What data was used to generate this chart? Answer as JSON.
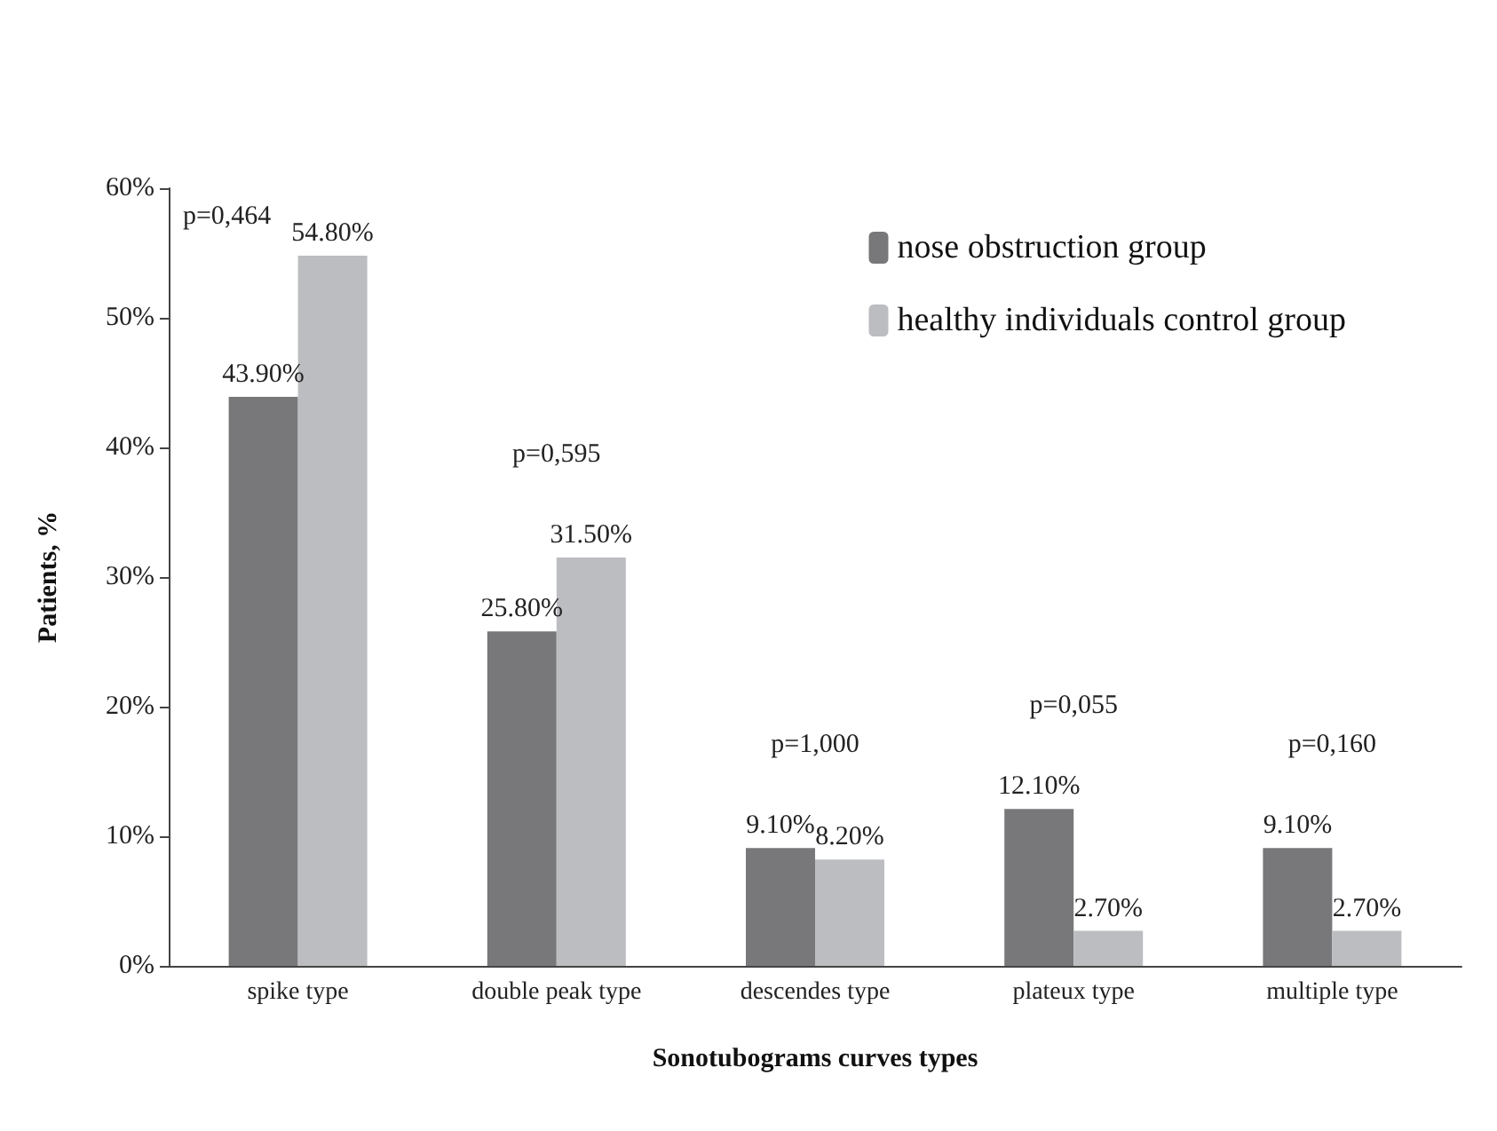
{
  "chart_data": {
    "type": "bar",
    "xlabel": "Sonotubograms curves types",
    "ylabel": "Patients, %",
    "categories": [
      "spike type",
      "double peak type",
      "descendes type",
      "plateux type",
      "multiple type"
    ],
    "series": [
      {
        "name": "nose obstruction group",
        "color": "#78787b",
        "values": [
          43.9,
          25.8,
          9.1,
          12.1,
          9.1
        ],
        "value_labels": [
          "43.90%",
          "25.80%",
          "9.10%",
          "12.10%",
          "9.10%"
        ]
      },
      {
        "name": "healthy individuals control group",
        "color": "#bcbdc0",
        "values": [
          54.8,
          31.5,
          8.2,
          2.7,
          2.7
        ],
        "value_labels": [
          "54.80%",
          "31.50%",
          "8.20%",
          "2.70%",
          "2.70%"
        ]
      }
    ],
    "ylim": [
      0,
      60
    ],
    "yticks": [
      {
        "value": 0,
        "label": "0%"
      },
      {
        "value": 10,
        "label": "10%"
      },
      {
        "value": 20,
        "label": "20%"
      },
      {
        "value": 30,
        "label": "30%"
      },
      {
        "value": 40,
        "label": "40%"
      },
      {
        "value": 50,
        "label": "50%"
      },
      {
        "value": 60,
        "label": "60%"
      }
    ],
    "annotations": [
      "p=0,464",
      "p=0,595",
      "p=1,000",
      "p=0,055",
      "p=0,160"
    ],
    "grid": false,
    "legend": "top right"
  }
}
